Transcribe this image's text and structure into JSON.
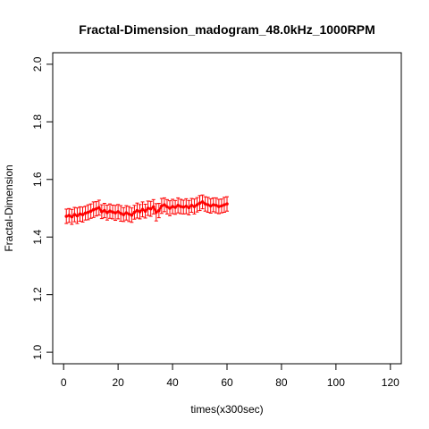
{
  "chart_data": {
    "type": "scatter",
    "title": "Fractal-Dimension_madogram_48.0kHz_1000RPM",
    "xlabel": "times(x300sec)",
    "ylabel": "Fractal-Dimension",
    "xlim": [
      -4,
      124
    ],
    "ylim": [
      0.96,
      2.04
    ],
    "xticks": [
      0,
      20,
      40,
      60,
      80,
      100,
      120
    ],
    "xtick_labels": [
      "0",
      "20",
      "40",
      "60",
      "80",
      "100",
      "120"
    ],
    "yticks": [
      1.0,
      1.2,
      1.4,
      1.6,
      1.8,
      2.0
    ],
    "ytick_labels": [
      "1.0",
      "1.2",
      "1.4",
      "1.6",
      "1.8",
      "2.0"
    ],
    "grid": false,
    "color": "#ff0000",
    "series": [
      {
        "x": [
          1,
          2,
          3,
          4,
          5,
          6,
          7,
          8,
          9,
          10,
          11,
          12,
          13,
          14,
          15,
          16,
          17,
          18,
          19,
          20,
          21,
          22,
          23,
          24,
          25,
          26,
          27,
          28,
          29,
          30,
          31,
          32,
          33,
          34,
          35,
          36,
          37,
          38,
          39,
          40,
          41,
          42,
          43,
          44,
          45,
          46,
          47,
          48,
          49,
          50,
          51,
          52,
          53,
          54,
          55,
          56,
          57,
          58,
          59,
          60
        ],
        "y": [
          1.472,
          1.475,
          1.47,
          1.478,
          1.474,
          1.48,
          1.478,
          1.483,
          1.486,
          1.49,
          1.495,
          1.498,
          1.502,
          1.488,
          1.492,
          1.485,
          1.49,
          1.487,
          1.484,
          1.488,
          1.482,
          1.478,
          1.484,
          1.48,
          1.476,
          1.486,
          1.492,
          1.488,
          1.496,
          1.49,
          1.5,
          1.498,
          1.505,
          1.486,
          1.492,
          1.508,
          1.512,
          1.505,
          1.5,
          1.506,
          1.503,
          1.51,
          1.506,
          1.504,
          1.507,
          1.502,
          1.51,
          1.506,
          1.512,
          1.518,
          1.522,
          1.515,
          1.512,
          1.508,
          1.512,
          1.51,
          1.506,
          1.508,
          1.512,
          1.515
        ],
        "err": [
          0.025,
          0.024,
          0.026,
          0.025,
          0.027,
          0.025,
          0.026,
          0.024,
          0.026,
          0.025,
          0.027,
          0.025,
          0.026,
          0.024,
          0.025,
          0.026,
          0.025,
          0.024,
          0.026,
          0.025,
          0.027,
          0.024,
          0.025,
          0.026,
          0.025,
          0.024,
          0.026,
          0.025,
          0.026,
          0.024,
          0.025,
          0.026,
          0.025,
          0.03,
          0.025,
          0.026,
          0.024,
          0.025,
          0.026,
          0.025,
          0.024,
          0.026,
          0.025,
          0.024,
          0.026,
          0.025,
          0.024,
          0.026,
          0.025,
          0.026,
          0.024,
          0.025,
          0.026,
          0.025,
          0.024,
          0.026,
          0.025,
          0.024,
          0.026,
          0.025
        ]
      }
    ]
  }
}
